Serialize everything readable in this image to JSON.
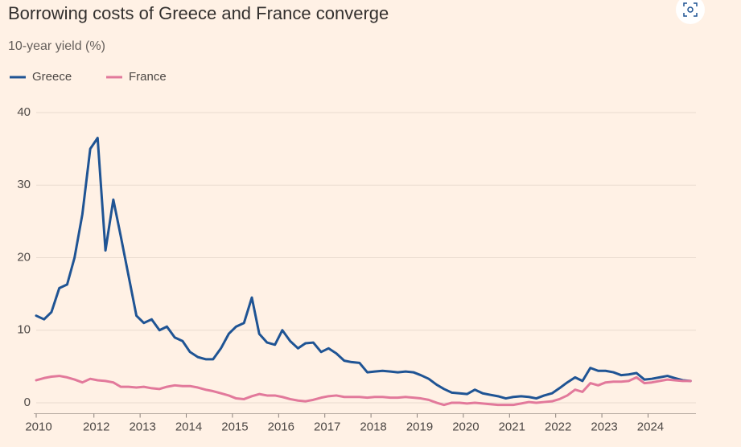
{
  "chart_data": {
    "type": "line",
    "title": "Borrowing costs of Greece and France converge",
    "subtitle": "10-year yield (%)",
    "x": [
      2010.75,
      2010.92,
      2011.08,
      2011.25,
      2011.42,
      2011.58,
      2011.75,
      2011.92,
      2012.08,
      2012.25,
      2012.42,
      2012.58,
      2012.75,
      2012.92,
      2013.08,
      2013.25,
      2013.42,
      2013.58,
      2013.75,
      2013.92,
      2014.08,
      2014.25,
      2014.42,
      2014.58,
      2014.75,
      2014.92,
      2015.08,
      2015.25,
      2015.42,
      2015.58,
      2015.75,
      2015.92,
      2016.08,
      2016.25,
      2016.42,
      2016.58,
      2016.75,
      2016.92,
      2017.08,
      2017.25,
      2017.42,
      2017.58,
      2017.75,
      2017.92,
      2018.08,
      2018.25,
      2018.42,
      2018.58,
      2018.75,
      2018.92,
      2019.08,
      2019.25,
      2019.42,
      2019.58,
      2019.75,
      2019.92,
      2020.08,
      2020.25,
      2020.42,
      2020.58,
      2020.75,
      2020.92,
      2021.08,
      2021.25,
      2021.42,
      2021.58,
      2021.75,
      2021.92,
      2022.08,
      2022.25,
      2022.42,
      2022.58,
      2022.75,
      2022.92,
      2023.08,
      2023.25,
      2023.42,
      2023.58,
      2023.75,
      2023.92,
      2024.08,
      2024.25,
      2024.42,
      2024.58,
      2024.75,
      2024.92
    ],
    "series": [
      {
        "name": "Greece",
        "color": "#1f5494",
        "values": [
          12,
          11.5,
          12.5,
          15.8,
          16.3,
          20,
          26,
          35,
          36.5,
          21,
          28,
          23,
          17.5,
          12,
          11,
          11.5,
          10,
          10.5,
          9,
          8.5,
          7,
          6.3,
          6,
          6,
          7.5,
          9.5,
          10.5,
          11,
          14.5,
          9.5,
          8.3,
          8,
          10,
          8.5,
          7.5,
          8.2,
          8.3,
          7,
          7.5,
          6.8,
          5.8,
          5.6,
          5.5,
          4.2,
          4.3,
          4.4,
          4.3,
          4.2,
          4.3,
          4.2,
          3.8,
          3.3,
          2.5,
          1.9,
          1.4,
          1.3,
          1.2,
          1.8,
          1.3,
          1.1,
          0.9,
          0.6,
          0.8,
          0.9,
          0.8,
          0.6,
          1.0,
          1.3,
          2.0,
          2.8,
          3.5,
          3.0,
          4.8,
          4.4,
          4.4,
          4.2,
          3.8,
          3.9,
          4.1,
          3.2,
          3.3,
          3.5,
          3.7,
          3.4,
          3.1,
          3.0
        ]
      },
      {
        "name": "France",
        "color": "#e2799b",
        "values": [
          3.1,
          3.4,
          3.6,
          3.7,
          3.5,
          3.2,
          2.8,
          3.3,
          3.1,
          3.0,
          2.8,
          2.2,
          2.2,
          2.1,
          2.2,
          2.0,
          1.9,
          2.2,
          2.4,
          2.3,
          2.3,
          2.1,
          1.8,
          1.6,
          1.3,
          1.0,
          0.6,
          0.5,
          0.9,
          1.2,
          1.0,
          1.0,
          0.8,
          0.5,
          0.3,
          0.2,
          0.4,
          0.7,
          0.9,
          1.0,
          0.8,
          0.8,
          0.8,
          0.7,
          0.8,
          0.8,
          0.7,
          0.7,
          0.8,
          0.7,
          0.6,
          0.4,
          0.0,
          -0.3,
          0.0,
          0.0,
          -0.1,
          0.0,
          -0.1,
          -0.2,
          -0.3,
          -0.3,
          -0.3,
          -0.1,
          0.1,
          0.0,
          0.1,
          0.2,
          0.5,
          1.0,
          1.8,
          1.5,
          2.7,
          2.4,
          2.8,
          2.9,
          2.9,
          3.0,
          3.5,
          2.7,
          2.8,
          3.0,
          3.2,
          3.1,
          3.0,
          3.0
        ]
      }
    ],
    "xlim": [
      2010.75,
      2024.95
    ],
    "xticks": [
      {
        "value": 2010.75,
        "label": "2010"
      },
      2012,
      2013,
      2014,
      2015,
      2016,
      2017,
      2018,
      2019,
      2020,
      2021,
      2022,
      2023,
      2024
    ],
    "ylim": [
      -1.5,
      41
    ],
    "yticks": [
      0,
      10,
      20,
      30,
      40
    ],
    "grid": true,
    "legend": "top-left"
  }
}
